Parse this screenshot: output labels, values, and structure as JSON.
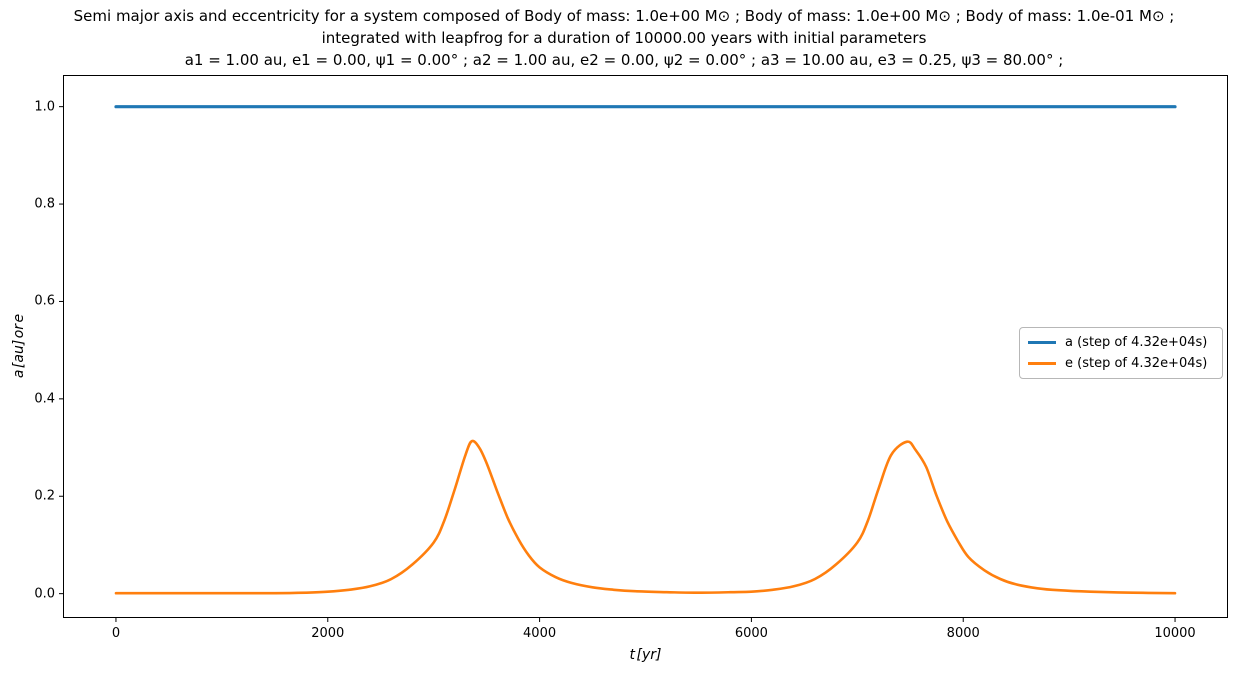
{
  "figure": {
    "title_lines": [
      "Semi major axis and eccentricity for a system composed of Body of mass: 1.0e+00 M⊙ ; Body of mass: 1.0e+00 M⊙ ; Body of mass: 1.0e-01 M⊙ ;",
      "integrated with leapfrog for a duration of 10000.00 years with initial parameters",
      "a1 = 1.00 au, e1 = 0.00, ψ1 = 0.00° ; a2 = 1.00 au, e2 = 0.00, ψ2 = 0.00° ; a3 = 10.00 au, e3 = 0.25, ψ3 = 80.00° ;"
    ],
    "xlabel": "t [yr]",
    "ylabel": "a [au] or e",
    "background": "#ffffff"
  },
  "chart_data": {
    "type": "line",
    "title": "Semi major axis and eccentricity for a 3-body system integrated with leapfrog",
    "xlabel": "t [yr]",
    "ylabel": "a [au] or e",
    "xlim": [
      -500,
      10500
    ],
    "ylim": [
      -0.05,
      1.065
    ],
    "x_ticks": [
      0,
      2000,
      4000,
      6000,
      8000,
      10000
    ],
    "x_tick_labels": [
      "0",
      "2000",
      "4000",
      "6000",
      "8000",
      "10000"
    ],
    "y_ticks": [
      0.0,
      0.2,
      0.4,
      0.6,
      0.8,
      1.0
    ],
    "y_tick_labels": [
      "0.0",
      "0.2",
      "0.4",
      "0.6",
      "0.8",
      "1.0"
    ],
    "grid": false,
    "legend_position": "center right",
    "series": [
      {
        "name": "a (step of 4.32e+04s)",
        "color": "#1f77b4",
        "stroke_width": 3.2,
        "smooth": false,
        "points": [
          [
            0,
            1.0
          ],
          [
            2500,
            1.0
          ],
          [
            5000,
            1.0
          ],
          [
            7500,
            1.0
          ],
          [
            10000,
            1.0
          ]
        ]
      },
      {
        "name": "e (step of 4.32e+04s)",
        "color": "#ff7f0e",
        "stroke_width": 2.6,
        "smooth": true,
        "points": [
          [
            0,
            0.001
          ],
          [
            500,
            0.001
          ],
          [
            1000,
            0.001
          ],
          [
            1500,
            0.001
          ],
          [
            1800,
            0.002
          ],
          [
            2000,
            0.004
          ],
          [
            2200,
            0.008
          ],
          [
            2400,
            0.015
          ],
          [
            2600,
            0.03
          ],
          [
            2800,
            0.06
          ],
          [
            3000,
            0.105
          ],
          [
            3100,
            0.15
          ],
          [
            3200,
            0.215
          ],
          [
            3300,
            0.285
          ],
          [
            3360,
            0.313
          ],
          [
            3430,
            0.3
          ],
          [
            3500,
            0.268
          ],
          [
            3600,
            0.21
          ],
          [
            3700,
            0.155
          ],
          [
            3800,
            0.112
          ],
          [
            3900,
            0.078
          ],
          [
            4000,
            0.054
          ],
          [
            4150,
            0.034
          ],
          [
            4300,
            0.022
          ],
          [
            4500,
            0.013
          ],
          [
            4700,
            0.008
          ],
          [
            4900,
            0.005
          ],
          [
            5200,
            0.003
          ],
          [
            5500,
            0.002
          ],
          [
            5800,
            0.003
          ],
          [
            6000,
            0.004
          ],
          [
            6200,
            0.008
          ],
          [
            6400,
            0.015
          ],
          [
            6600,
            0.03
          ],
          [
            6800,
            0.06
          ],
          [
            7000,
            0.105
          ],
          [
            7100,
            0.15
          ],
          [
            7200,
            0.215
          ],
          [
            7320,
            0.285
          ],
          [
            7470,
            0.312
          ],
          [
            7550,
            0.295
          ],
          [
            7650,
            0.26
          ],
          [
            7750,
            0.2
          ],
          [
            7850,
            0.148
          ],
          [
            7950,
            0.108
          ],
          [
            8050,
            0.075
          ],
          [
            8200,
            0.048
          ],
          [
            8350,
            0.03
          ],
          [
            8500,
            0.019
          ],
          [
            8700,
            0.011
          ],
          [
            8900,
            0.007
          ],
          [
            9200,
            0.004
          ],
          [
            9600,
            0.002
          ],
          [
            10000,
            0.001
          ]
        ]
      }
    ]
  }
}
